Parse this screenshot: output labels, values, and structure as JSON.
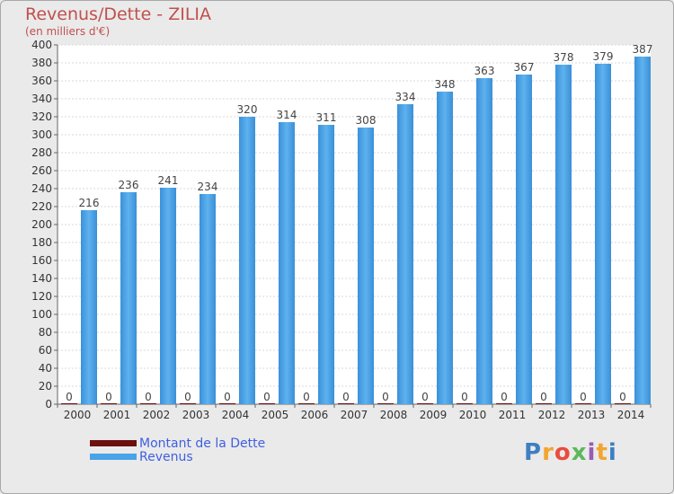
{
  "header": {
    "title": "Revenus/Dette - ZILIA",
    "subtitle": "(en milliers d'€)"
  },
  "legend": {
    "items": [
      {
        "label": "Montant de la Dette",
        "color": "#6b0f0f"
      },
      {
        "label": "Revenus",
        "color": "#4aa3e6"
      }
    ]
  },
  "logo": {
    "text": "Proxiti",
    "letter_colors": [
      "#3e7fc1",
      "#f2a530",
      "#e84c3d",
      "#5db85c",
      "#9b59b6",
      "#f2a530",
      "#3e7fc1"
    ]
  },
  "chart_data": {
    "type": "bar",
    "categories": [
      "2000",
      "2001",
      "2002",
      "2003",
      "2004",
      "2005",
      "2006",
      "2007",
      "2008",
      "2009",
      "2010",
      "2011",
      "2012",
      "2013",
      "2014"
    ],
    "series": [
      {
        "name": "Montant de la Dette",
        "values": [
          0,
          0,
          0,
          0,
          0,
          0,
          0,
          0,
          0,
          0,
          0,
          0,
          0,
          0,
          0
        ]
      },
      {
        "name": "Revenus",
        "values": [
          216,
          236,
          241,
          234,
          320,
          314,
          311,
          308,
          334,
          348,
          363,
          367,
          378,
          379,
          387
        ]
      }
    ],
    "ylim": [
      0,
      400
    ],
    "ytick_step": 20,
    "grid": true
  }
}
